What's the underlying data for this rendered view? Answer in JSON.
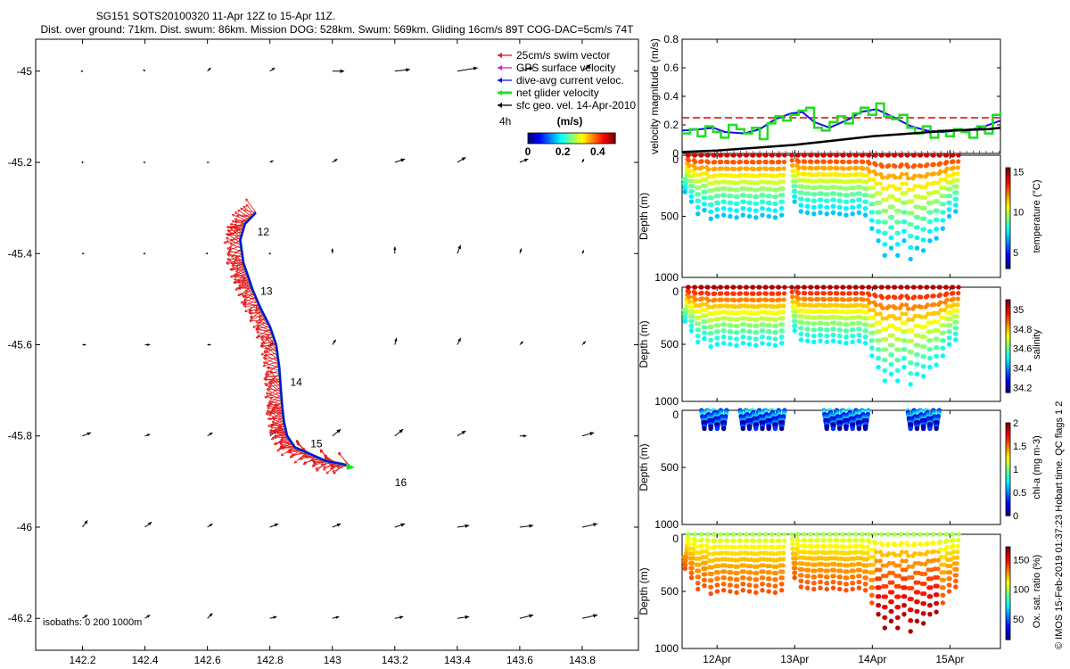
{
  "header": {
    "title": "SG151 SOTS20100320 11-Apr 12Z to 15-Apr 11Z.",
    "subtitle": "Dist. over ground: 71km. Dist. swum: 86km. Mission DOG: 528km. Swum: 569km. Gliding 16cm/s 89T COG-DAC=5cm/s 74T"
  },
  "copyright": "© IMOS 15-Feb-2019 01:37:23 Hobart time. QC flags 1  2",
  "colors": {
    "swim": "#e41a1c",
    "gps": "#d020d0",
    "dac": "#1010e0",
    "net": "#22dd22",
    "sfc": "#000000",
    "threshold": "#e00000"
  },
  "chart_data": [
    {
      "type": "line",
      "name": "map",
      "xlim": [
        142.05,
        143.98
      ],
      "ylim": [
        -46.27,
        -44.93
      ],
      "xticks": [
        142.2,
        142.4,
        142.6,
        142.8,
        143,
        143.2,
        143.4,
        143.6,
        143.8
      ],
      "xtick_labels": [
        "142.2",
        "142.4",
        "142.6",
        "142.8",
        "143",
        "143.2",
        "143.4",
        "143.6",
        "143.8"
      ],
      "yticks": [
        -45,
        -45.2,
        -45.4,
        -45.6,
        -45.8,
        -46,
        -46.2
      ],
      "ytick_labels": [
        "-45",
        "-45.2",
        "-45.4",
        "-45.6",
        "-45.8",
        "-46",
        "-46.2"
      ],
      "legend": [
        {
          "key": "swim",
          "label": "25cm/s swim vector"
        },
        {
          "key": "gps",
          "label": "GPS surface velocity"
        },
        {
          "key": "dac",
          "label": "dive-avg current veloc."
        },
        {
          "key": "net",
          "label": "net glider velocity"
        },
        {
          "key": "sfc",
          "label": "sfc geo. vel. 14-Apr-2010"
        }
      ],
      "legend_position": "top-right",
      "colorbar": {
        "title": "(m/s)",
        "scale_note": "4h",
        "ticks": [
          "0",
          "0.2",
          "0.4"
        ],
        "range": [
          0,
          0.5
        ]
      },
      "isobath_note": "isobaths: 0   200  1000m",
      "track": {
        "lon": [
          142.755,
          142.72,
          142.705,
          142.715,
          142.73,
          142.745,
          142.77,
          142.8,
          142.82,
          142.83,
          142.835,
          142.84,
          142.845,
          142.855,
          142.88,
          142.93,
          142.98,
          143.02,
          143.055
        ],
        "lat": [
          -45.31,
          -45.335,
          -45.37,
          -45.42,
          -45.45,
          -45.48,
          -45.52,
          -45.56,
          -45.6,
          -45.65,
          -45.7,
          -45.74,
          -45.77,
          -45.8,
          -45.825,
          -45.84,
          -45.855,
          -45.86,
          -45.865
        ]
      },
      "day_labels": [
        {
          "text": "12",
          "lon": 142.76,
          "lat": -45.36
        },
        {
          "text": "13",
          "lon": 142.77,
          "lat": -45.49
        },
        {
          "text": "14",
          "lon": 142.865,
          "lat": -45.69
        },
        {
          "text": "15",
          "lon": 142.93,
          "lat": -45.825
        },
        {
          "text": "16",
          "lon": 143.2,
          "lat": -45.91
        }
      ],
      "geo_vectors": {
        "lons": [
          142.2,
          142.4,
          142.6,
          142.8,
          143.0,
          143.2,
          143.4,
          143.6,
          143.8
        ],
        "lats": [
          -45.0,
          -45.2,
          -45.4,
          -45.6,
          -45.8,
          -46.0,
          -46.2
        ],
        "u": [
          [
            -0.01,
            -0.01,
            0.02,
            0.03,
            0.07,
            0.09,
            0.12,
            0.08,
            0.05
          ],
          [
            0.0,
            -0.01,
            0.01,
            0.02,
            0.03,
            0.06,
            0.05,
            0.05,
            0.01
          ],
          [
            0.01,
            -0.01,
            -0.01,
            0.0,
            0.0,
            0.0,
            0.02,
            0.01,
            0.01
          ],
          [
            0.02,
            0.03,
            0.02,
            0.02,
            0.02,
            0.01,
            0.02,
            0.02,
            0.02
          ],
          [
            0.05,
            0.03,
            0.03,
            0.04,
            0.05,
            0.05,
            0.05,
            0.04,
            0.07
          ],
          [
            0.03,
            0.04,
            0.03,
            0.05,
            0.05,
            0.06,
            0.07,
            0.08,
            0.09
          ],
          [
            0.03,
            0.03,
            0.03,
            0.04,
            0.04,
            0.05,
            0.07,
            0.08,
            0.09
          ]
        ],
        "v": [
          [
            0.0,
            0.01,
            0.02,
            0.02,
            0.0,
            0.01,
            0.02,
            0.02,
            0.04
          ],
          [
            0.0,
            0.0,
            0.0,
            0.01,
            0.02,
            0.02,
            0.03,
            0.02,
            0.02
          ],
          [
            0.0,
            0.0,
            0.0,
            0.0,
            0.03,
            0.04,
            0.05,
            0.03,
            0.02
          ],
          [
            0.0,
            0.0,
            0.0,
            0.01,
            0.03,
            0.04,
            0.04,
            0.02,
            0.02
          ],
          [
            0.02,
            0.01,
            0.02,
            0.03,
            0.04,
            0.04,
            0.03,
            0.0,
            0.02
          ],
          [
            0.04,
            0.03,
            0.02,
            0.02,
            0.02,
            0.02,
            0.01,
            0.01,
            0.02
          ],
          [
            0.02,
            0.02,
            0.03,
            0.01,
            0.01,
            0.01,
            0.01,
            0.02,
            0.02
          ]
        ]
      }
    },
    {
      "type": "line",
      "name": "velocity",
      "ylabel": "velocity magnitude (m/s)",
      "xlim": [
        11.55,
        15.65
      ],
      "ylim": [
        0,
        0.8
      ],
      "yticks": [
        0,
        0.2,
        0.4,
        0.6,
        0.8
      ],
      "ytick_labels": [
        "0",
        "0.2",
        "0.4",
        "0.6",
        "0.8"
      ],
      "threshold": 0.25,
      "series": [
        {
          "key": "dac",
          "x": [
            11.55,
            11.8,
            11.95,
            12.1,
            12.35,
            12.55,
            12.75,
            12.95,
            13.1,
            13.25,
            13.45,
            13.7,
            13.85,
            14.05,
            14.25,
            14.5,
            14.7,
            14.9,
            15.1,
            15.3,
            15.45,
            15.65
          ],
          "y": [
            0.16,
            0.17,
            0.18,
            0.15,
            0.14,
            0.17,
            0.24,
            0.28,
            0.29,
            0.22,
            0.18,
            0.24,
            0.29,
            0.31,
            0.26,
            0.19,
            0.16,
            0.15,
            0.16,
            0.17,
            0.19,
            0.23
          ]
        },
        {
          "key": "net",
          "x": [
            11.55,
            11.65,
            11.75,
            11.85,
            11.95,
            12.05,
            12.15,
            12.25,
            12.35,
            12.45,
            12.55,
            12.65,
            12.75,
            12.85,
            12.95,
            13.05,
            13.15,
            13.25,
            13.35,
            13.45,
            13.55,
            13.65,
            13.75,
            13.85,
            13.95,
            14.05,
            14.15,
            14.25,
            14.35,
            14.45,
            14.55,
            14.65,
            14.75,
            14.85,
            14.95,
            15.05,
            15.15,
            15.25,
            15.35,
            15.45,
            15.55,
            15.65
          ],
          "y": [
            0.14,
            0.17,
            0.12,
            0.19,
            0.15,
            0.11,
            0.2,
            0.17,
            0.14,
            0.18,
            0.1,
            0.21,
            0.26,
            0.23,
            0.27,
            0.3,
            0.32,
            0.18,
            0.16,
            0.22,
            0.26,
            0.21,
            0.28,
            0.32,
            0.27,
            0.35,
            0.26,
            0.24,
            0.27,
            0.18,
            0.14,
            0.19,
            0.11,
            0.16,
            0.12,
            0.17,
            0.15,
            0.11,
            0.19,
            0.14,
            0.27,
            0.29
          ]
        },
        {
          "key": "sfc",
          "x": [
            11.55,
            12.0,
            12.5,
            13.0,
            13.5,
            14.0,
            14.5,
            15.0,
            15.5,
            15.65
          ],
          "y": [
            0.01,
            0.02,
            0.04,
            0.06,
            0.09,
            0.12,
            0.14,
            0.16,
            0.17,
            0.18
          ]
        }
      ]
    },
    {
      "type": "scatter",
      "name": "temperature",
      "ylabel": "Depth (m)",
      "clabel": "temperature (°C)",
      "clim": [
        3,
        15.5
      ],
      "cticks": [
        5,
        10,
        15
      ],
      "ctick_labels": [
        "5",
        "10",
        "15"
      ],
      "surface_value": 14.5,
      "bottom_value": 7,
      "ylim": [
        0,
        1000
      ],
      "yticks": [
        0,
        500,
        1000
      ],
      "ytick_labels": [
        "",
        "500",
        "1000"
      ],
      "value_scale": "linear",
      "dive_start_day": 11.55,
      "dive_interval_days": 0.083,
      "dive_depths": [
        300,
        380,
        480,
        450,
        520,
        500,
        490,
        500,
        510,
        490,
        500,
        510,
        490,
        500,
        510,
        490,
        0,
        380,
        460,
        470,
        480,
        470,
        480,
        470,
        480,
        490,
        480,
        470,
        490,
        600,
        700,
        820,
        760,
        820,
        700,
        850,
        760,
        780,
        700,
        680,
        600,
        500,
        460
      ],
      "has_data": true
    },
    {
      "type": "scatter",
      "name": "salinity",
      "ylabel": "Depth (m)",
      "clabel": "salinity",
      "clim": [
        34.15,
        35.1
      ],
      "cticks": [
        34.2,
        34.4,
        34.6,
        34.8,
        35
      ],
      "ctick_labels": [
        "34.2",
        "34.4",
        "34.6",
        "34.8",
        "35"
      ],
      "surface_value": 35.05,
      "bottom_value": 34.5,
      "ylim": [
        0,
        1000
      ],
      "yticks": [
        0,
        500,
        1000
      ],
      "ytick_labels": [
        "",
        "500",
        "1000"
      ],
      "value_scale": "linear",
      "dive_start_day": 11.55,
      "dive_interval_days": 0.083,
      "dive_depths": [
        300,
        380,
        480,
        450,
        520,
        500,
        490,
        500,
        510,
        490,
        500,
        510,
        490,
        500,
        510,
        490,
        0,
        380,
        460,
        470,
        480,
        470,
        480,
        470,
        480,
        490,
        480,
        470,
        490,
        600,
        700,
        820,
        760,
        820,
        700,
        850,
        760,
        780,
        700,
        680,
        600,
        500,
        460
      ],
      "has_data": true
    },
    {
      "type": "scatter",
      "name": "chla",
      "ylabel": "Depth (m)",
      "clabel": "chl-a (mg m-3)",
      "clim": [
        0,
        2
      ],
      "cticks": [
        0,
        0.5,
        1,
        1.5,
        2
      ],
      "ctick_labels": [
        "0",
        "0.5",
        "1",
        "1.5",
        "2"
      ],
      "surface_value": 0.6,
      "bottom_value": 0.1,
      "ylim": [
        0,
        1000
      ],
      "yticks": [
        0,
        500,
        1000
      ],
      "ytick_labels": [
        "",
        "500",
        "1000"
      ],
      "value_scale": "linear",
      "dive_start_day": 11.55,
      "dive_interval_days": 0.083,
      "dive_depths": [
        0,
        0,
        0,
        160,
        160,
        160,
        160,
        0,
        0,
        160,
        160,
        160,
        160,
        160,
        160,
        160,
        0,
        0,
        0,
        0,
        0,
        0,
        160,
        160,
        160,
        160,
        160,
        160,
        160,
        0,
        0,
        0,
        0,
        0,
        0,
        160,
        160,
        160,
        160,
        160,
        0,
        0,
        0
      ],
      "has_data": true
    },
    {
      "type": "scatter",
      "name": "oxygen",
      "ylabel": "Depth (m)",
      "clabel": "Ox. sat. ratio (%)",
      "clim": [
        15,
        172
      ],
      "cticks": [
        50,
        100,
        150
      ],
      "ctick_labels": [
        "50",
        "100",
        "150"
      ],
      "surface_value": 100,
      "bottom_value": 140,
      "ylim": [
        0,
        1000
      ],
      "yticks": [
        0,
        500,
        1000
      ],
      "ytick_labels": [
        "",
        "500",
        "1000"
      ],
      "value_scale": "linear",
      "dive_start_day": 11.55,
      "dive_interval_days": 0.083,
      "dive_depths": [
        300,
        380,
        480,
        450,
        520,
        500,
        490,
        500,
        510,
        490,
        500,
        510,
        490,
        500,
        510,
        490,
        0,
        380,
        460,
        470,
        480,
        470,
        480,
        470,
        480,
        490,
        480,
        470,
        490,
        600,
        700,
        820,
        760,
        820,
        700,
        850,
        760,
        780,
        700,
        680,
        600,
        500,
        460
      ],
      "has_data": true
    }
  ],
  "time_axis": {
    "ticks": [
      12,
      13,
      14,
      15
    ],
    "labels": [
      "12Apr",
      "13Apr",
      "14Apr",
      "15Apr"
    ]
  }
}
